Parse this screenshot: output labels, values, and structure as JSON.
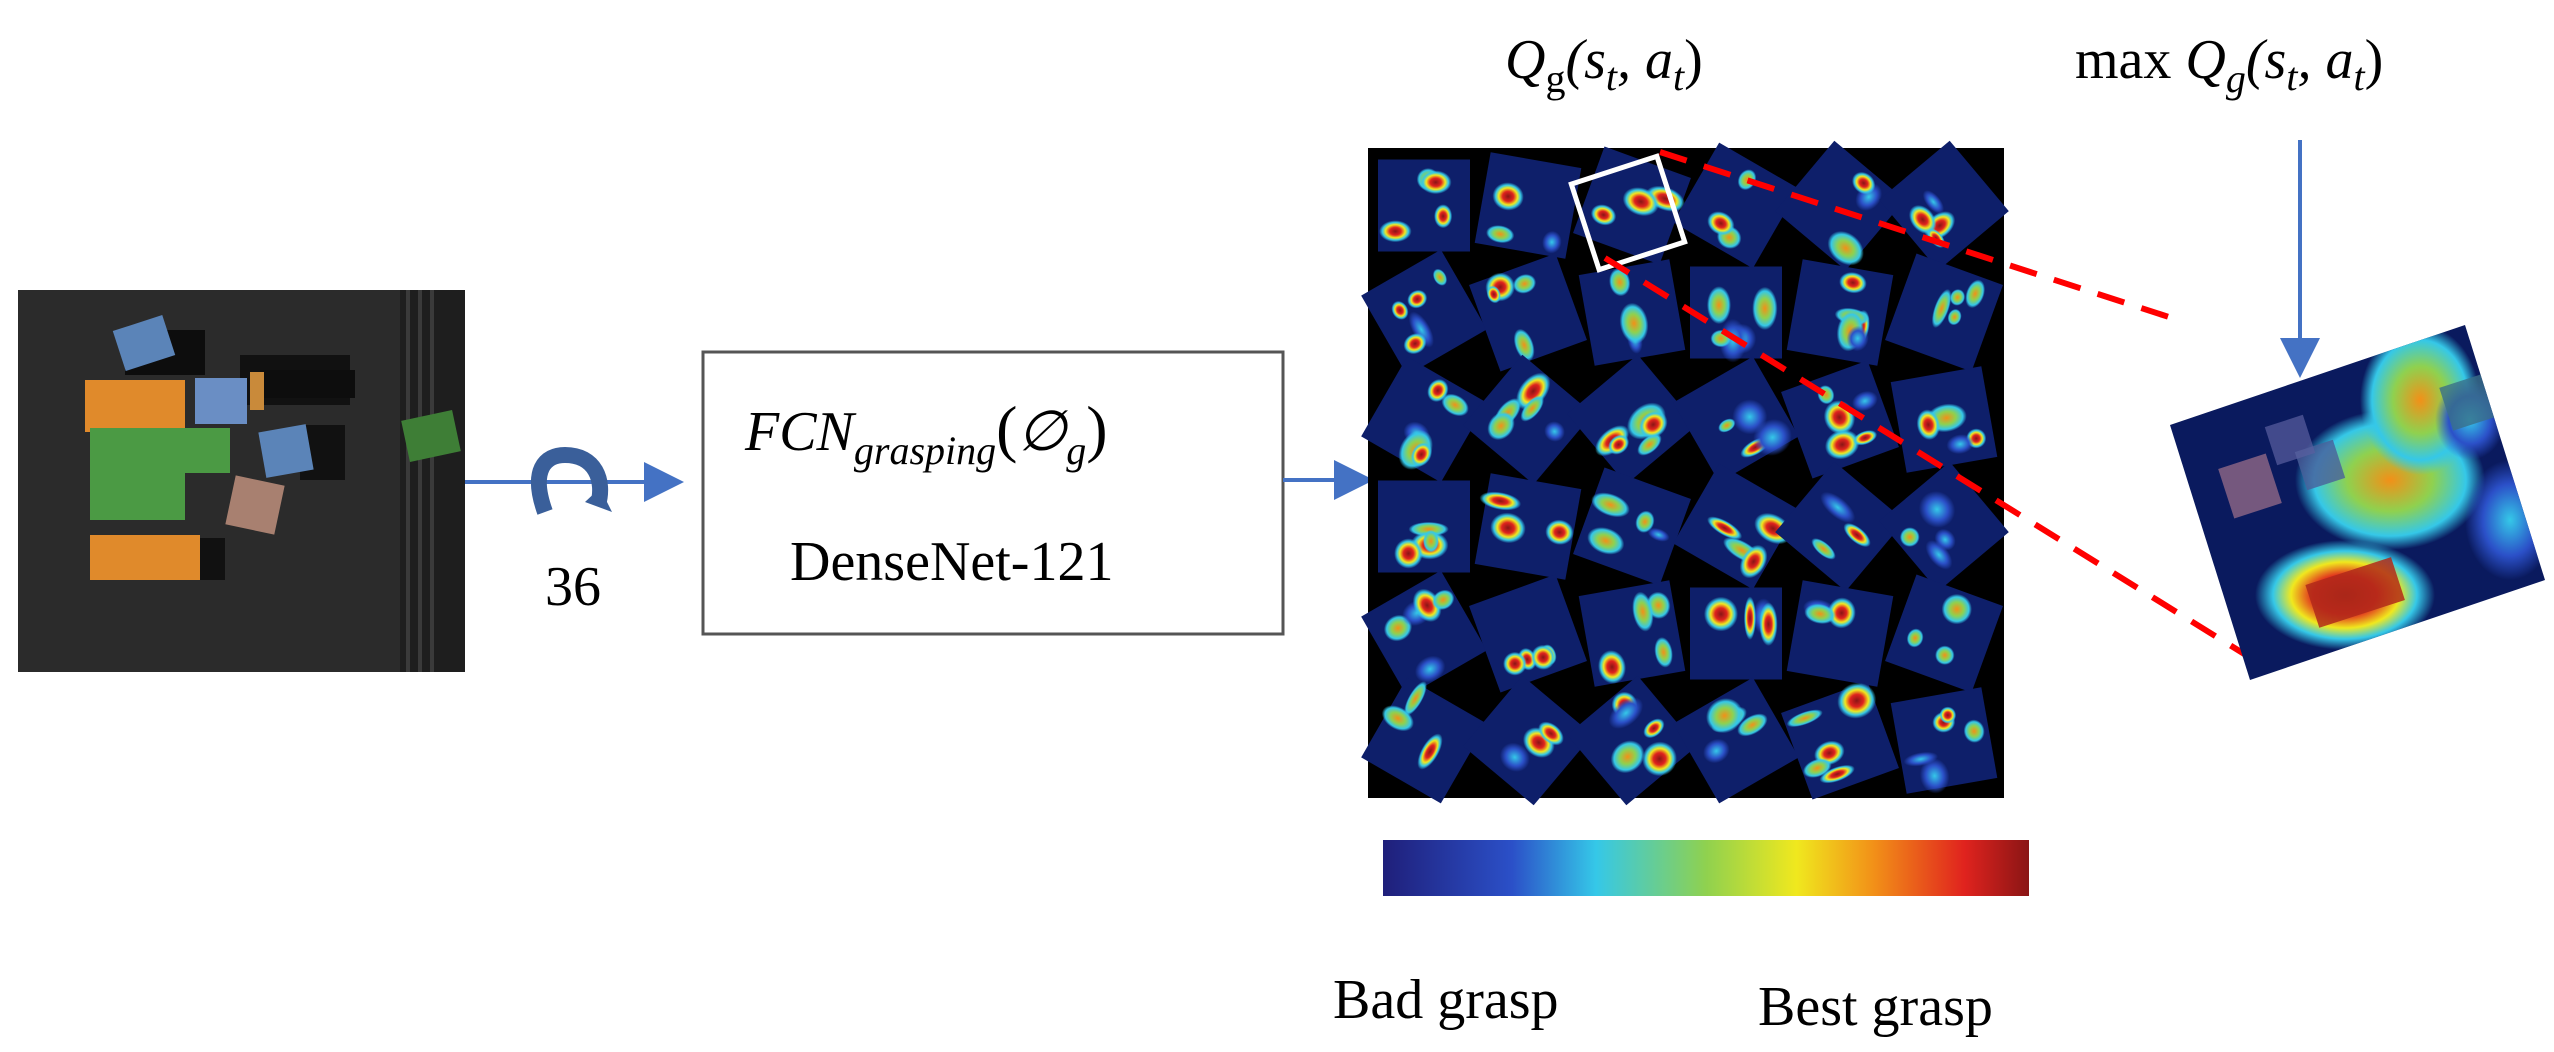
{
  "input": {
    "rotations_label": "36"
  },
  "network_box": {
    "title_main": "FCN",
    "title_sub": "grasping",
    "title_param_open": "(",
    "title_param_phi": "∅",
    "title_param_sub": "g",
    "title_param_close": ")",
    "backbone": "DenseNet-121"
  },
  "qmap": {
    "label_Q": "Q",
    "label_sub": "g",
    "label_args": "(s",
    "label_t1": "t",
    "label_comma": ", a",
    "label_t2": "t",
    "label_close": ")"
  },
  "zoom": {
    "max_word": "max",
    "label_Q": "Q",
    "label_sub": "g",
    "label_args": "(s",
    "label_t1": "t",
    "label_comma": ", a",
    "label_t2": "t",
    "label_close": ")"
  },
  "colorbar": {
    "low_label": "Bad grasp",
    "high_label": "Best grasp",
    "colors": [
      "#1f1f7a",
      "#2b50c8",
      "#35c8e8",
      "#8fd14f",
      "#f0e81e",
      "#f29018",
      "#e0231e",
      "#8a1515"
    ]
  },
  "colors": {
    "arrow": "#4472c4",
    "dash": "#ff0000",
    "heatmap_bg": "#0a1a5e"
  }
}
